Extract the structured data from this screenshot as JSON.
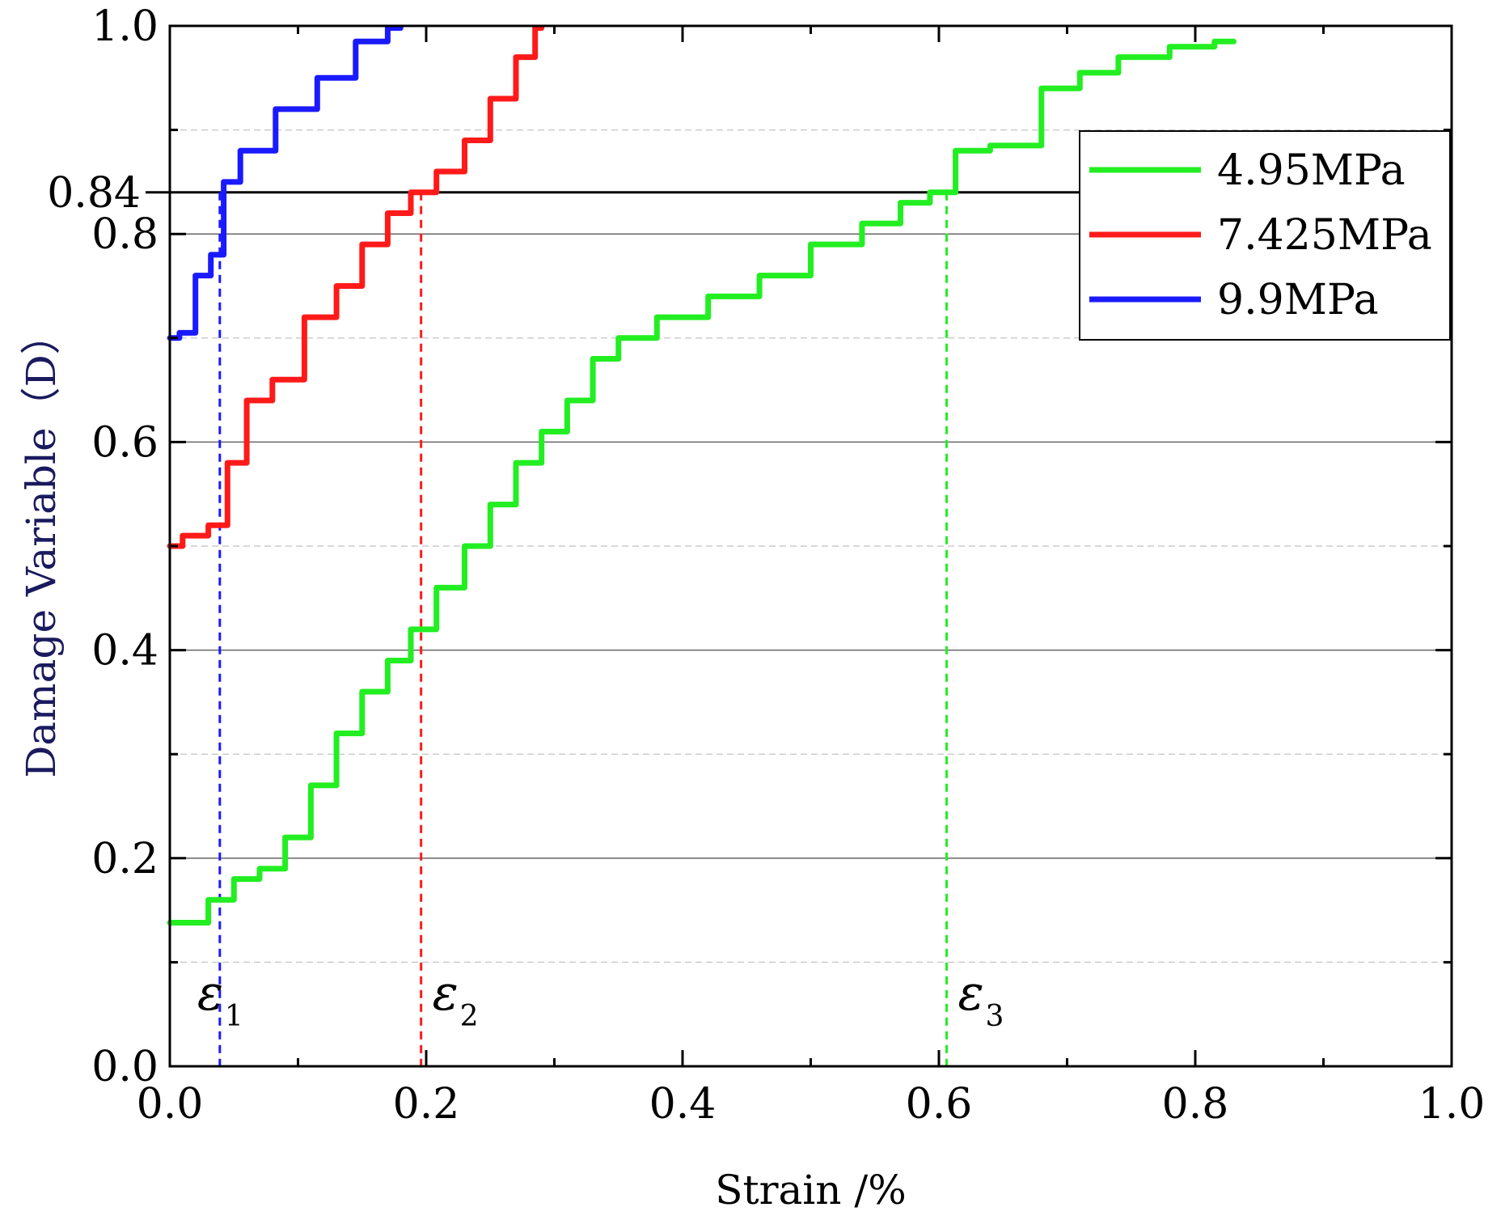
{
  "colors": {
    "series_4_95": "#22ee22",
    "series_7_425": "#ff1a1a",
    "series_9_9": "#1a1aff",
    "axis": "#000000",
    "ylabel": "#1a1a5e",
    "grid_major": "#666666",
    "grid_minor": "#cccccc"
  },
  "chart_data": {
    "type": "line",
    "title": "",
    "xlabel": "Strain /%",
    "ylabel": "Damage Variable（D）",
    "xlim": [
      0.0,
      1.0
    ],
    "ylim": [
      0.0,
      1.0
    ],
    "x_ticks": [
      "0.0",
      "0.2",
      "0.4",
      "0.6",
      "0.8",
      "1.0"
    ],
    "x_tick_values": [
      0.0,
      0.2,
      0.4,
      0.6,
      0.8,
      1.0
    ],
    "y_ticks": [
      "0.0",
      "0.2",
      "0.4",
      "0.6",
      "0.8",
      "1.0"
    ],
    "y_tick_values": [
      0.0,
      0.2,
      0.4,
      0.6,
      0.8,
      1.0
    ],
    "y_minor_grid": [
      0.1,
      0.3,
      0.5,
      0.7,
      0.9
    ],
    "grid": true,
    "legend_position": "top-right",
    "threshold": {
      "value": 0.84,
      "label": "0.84"
    },
    "series": [
      {
        "name": "4.95MPa",
        "color": "#22ee22",
        "x": [
          0.0,
          0.02,
          0.04,
          0.06,
          0.08,
          0.1,
          0.12,
          0.14,
          0.16,
          0.18,
          0.196,
          0.22,
          0.24,
          0.26,
          0.28,
          0.3,
          0.32,
          0.34,
          0.36,
          0.4,
          0.44,
          0.48,
          0.52,
          0.56,
          0.58,
          0.606,
          0.62,
          0.66,
          0.7,
          0.72,
          0.76,
          0.8,
          0.83
        ],
        "y": [
          0.138,
          0.138,
          0.16,
          0.18,
          0.19,
          0.22,
          0.27,
          0.32,
          0.36,
          0.39,
          0.42,
          0.46,
          0.5,
          0.54,
          0.58,
          0.61,
          0.64,
          0.68,
          0.7,
          0.72,
          0.74,
          0.76,
          0.79,
          0.81,
          0.83,
          0.84,
          0.88,
          0.885,
          0.94,
          0.955,
          0.97,
          0.98,
          0.985
        ]
      },
      {
        "name": "7.425MPa",
        "color": "#ff1a1a",
        "x": [
          0.0,
          0.02,
          0.04,
          0.05,
          0.07,
          0.09,
          0.12,
          0.14,
          0.16,
          0.18,
          0.196,
          0.22,
          0.24,
          0.26,
          0.28,
          0.29
        ],
        "y": [
          0.5,
          0.51,
          0.52,
          0.58,
          0.64,
          0.66,
          0.72,
          0.75,
          0.79,
          0.82,
          0.84,
          0.86,
          0.89,
          0.93,
          0.97,
          0.998
        ]
      },
      {
        "name": "9.9MPa",
        "color": "#1a1aff",
        "x": [
          0.0,
          0.015,
          0.025,
          0.039,
          0.045,
          0.065,
          0.1,
          0.13,
          0.16,
          0.18
        ],
        "y": [
          0.7,
          0.705,
          0.76,
          0.78,
          0.85,
          0.88,
          0.92,
          0.95,
          0.985,
          0.998
        ]
      }
    ],
    "reference_lines": [
      {
        "x": 0.039,
        "color": "#1a1aff",
        "label": "ε",
        "subscript": "1"
      },
      {
        "x": 0.196,
        "color": "#ff1a1a",
        "label": "ε",
        "subscript": "2"
      },
      {
        "x": 0.606,
        "color": "#22ee22",
        "label": "ε",
        "subscript": "3"
      }
    ]
  }
}
